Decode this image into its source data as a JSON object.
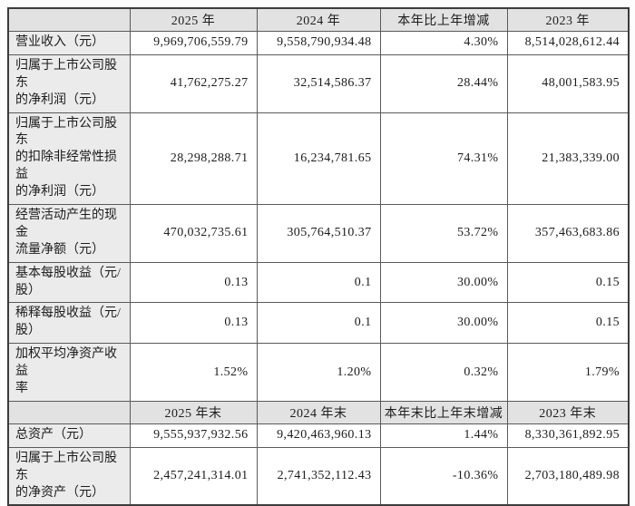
{
  "colors": {
    "header_bg": "#e2e2e2",
    "label_bg": "#ebebeb",
    "border": "#5a5a5a",
    "text": "#1c1c1c"
  },
  "sections": [
    {
      "headers": [
        "",
        "2025 年",
        "2024 年",
        "本年比上年增减",
        "2023 年"
      ],
      "rows": [
        {
          "label": "营业收入（元）",
          "values": [
            "9,969,706,559.79",
            "9,558,790,934.48",
            "4.30%",
            "8,514,028,612.44"
          ]
        },
        {
          "label": "归属于上市公司股东\n的净利润（元）",
          "values": [
            "41,762,275.27",
            "32,514,586.37",
            "28.44%",
            "48,001,583.95"
          ]
        },
        {
          "label": "归属于上市公司股东\n的扣除非经常性损益\n的净利润（元）",
          "values": [
            "28,298,288.71",
            "16,234,781.65",
            "74.31%",
            "21,383,339.00"
          ]
        },
        {
          "label": "经营活动产生的现金\n流量净额（元）",
          "values": [
            "470,032,735.61",
            "305,764,510.37",
            "53.72%",
            "357,463,683.86"
          ]
        },
        {
          "label": "基本每股收益（元/\n股）",
          "values": [
            "0.13",
            "0.1",
            "30.00%",
            "0.15"
          ]
        },
        {
          "label": "稀释每股收益（元/\n股）",
          "values": [
            "0.13",
            "0.1",
            "30.00%",
            "0.15"
          ]
        },
        {
          "label": "加权平均净资产收益\n率",
          "values": [
            "1.52%",
            "1.20%",
            "0.32%",
            "1.79%"
          ]
        }
      ]
    },
    {
      "headers": [
        "",
        "2025 年末",
        "2024 年末",
        "本年末比上年末增减",
        "2023 年末"
      ],
      "rows": [
        {
          "label": "总资产（元）",
          "values": [
            "9,555,937,932.56",
            "9,420,463,960.13",
            "1.44%",
            "8,330,361,892.95"
          ]
        },
        {
          "label": "归属于上市公司股东\n的净资产（元）",
          "values": [
            "2,457,241,314.01",
            "2,741,352,112.43",
            "-10.36%",
            "2,703,180,489.98"
          ]
        }
      ]
    }
  ]
}
